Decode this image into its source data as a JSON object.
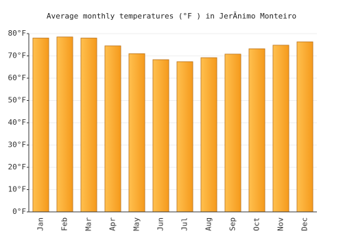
{
  "chart_data": {
    "type": "bar",
    "title": "Average monthly temperatures (°F ) in JerĂnimo Monteiro",
    "categories": [
      "Jan",
      "Feb",
      "Mar",
      "Apr",
      "May",
      "Jun",
      "Jul",
      "Aug",
      "Sep",
      "Oct",
      "Nov",
      "Dec"
    ],
    "values": [
      78,
      78.5,
      78,
      74.5,
      71,
      68.3,
      67.4,
      69.2,
      70.8,
      73.2,
      74.8,
      76.3
    ],
    "color": "#f7a32a",
    "ylim": [
      0,
      80
    ],
    "yticks": [
      {
        "value": 0,
        "label": "0°F"
      },
      {
        "value": 10,
        "label": "10°F"
      },
      {
        "value": 20,
        "label": "20°F"
      },
      {
        "value": 30,
        "label": "30°F"
      },
      {
        "value": 40,
        "label": "40°F"
      },
      {
        "value": 50,
        "label": "50°F"
      },
      {
        "value": 60,
        "label": "60°F"
      },
      {
        "value": 70,
        "label": "70°F"
      },
      {
        "value": 80,
        "label": "80°F"
      }
    ],
    "grid": true
  }
}
